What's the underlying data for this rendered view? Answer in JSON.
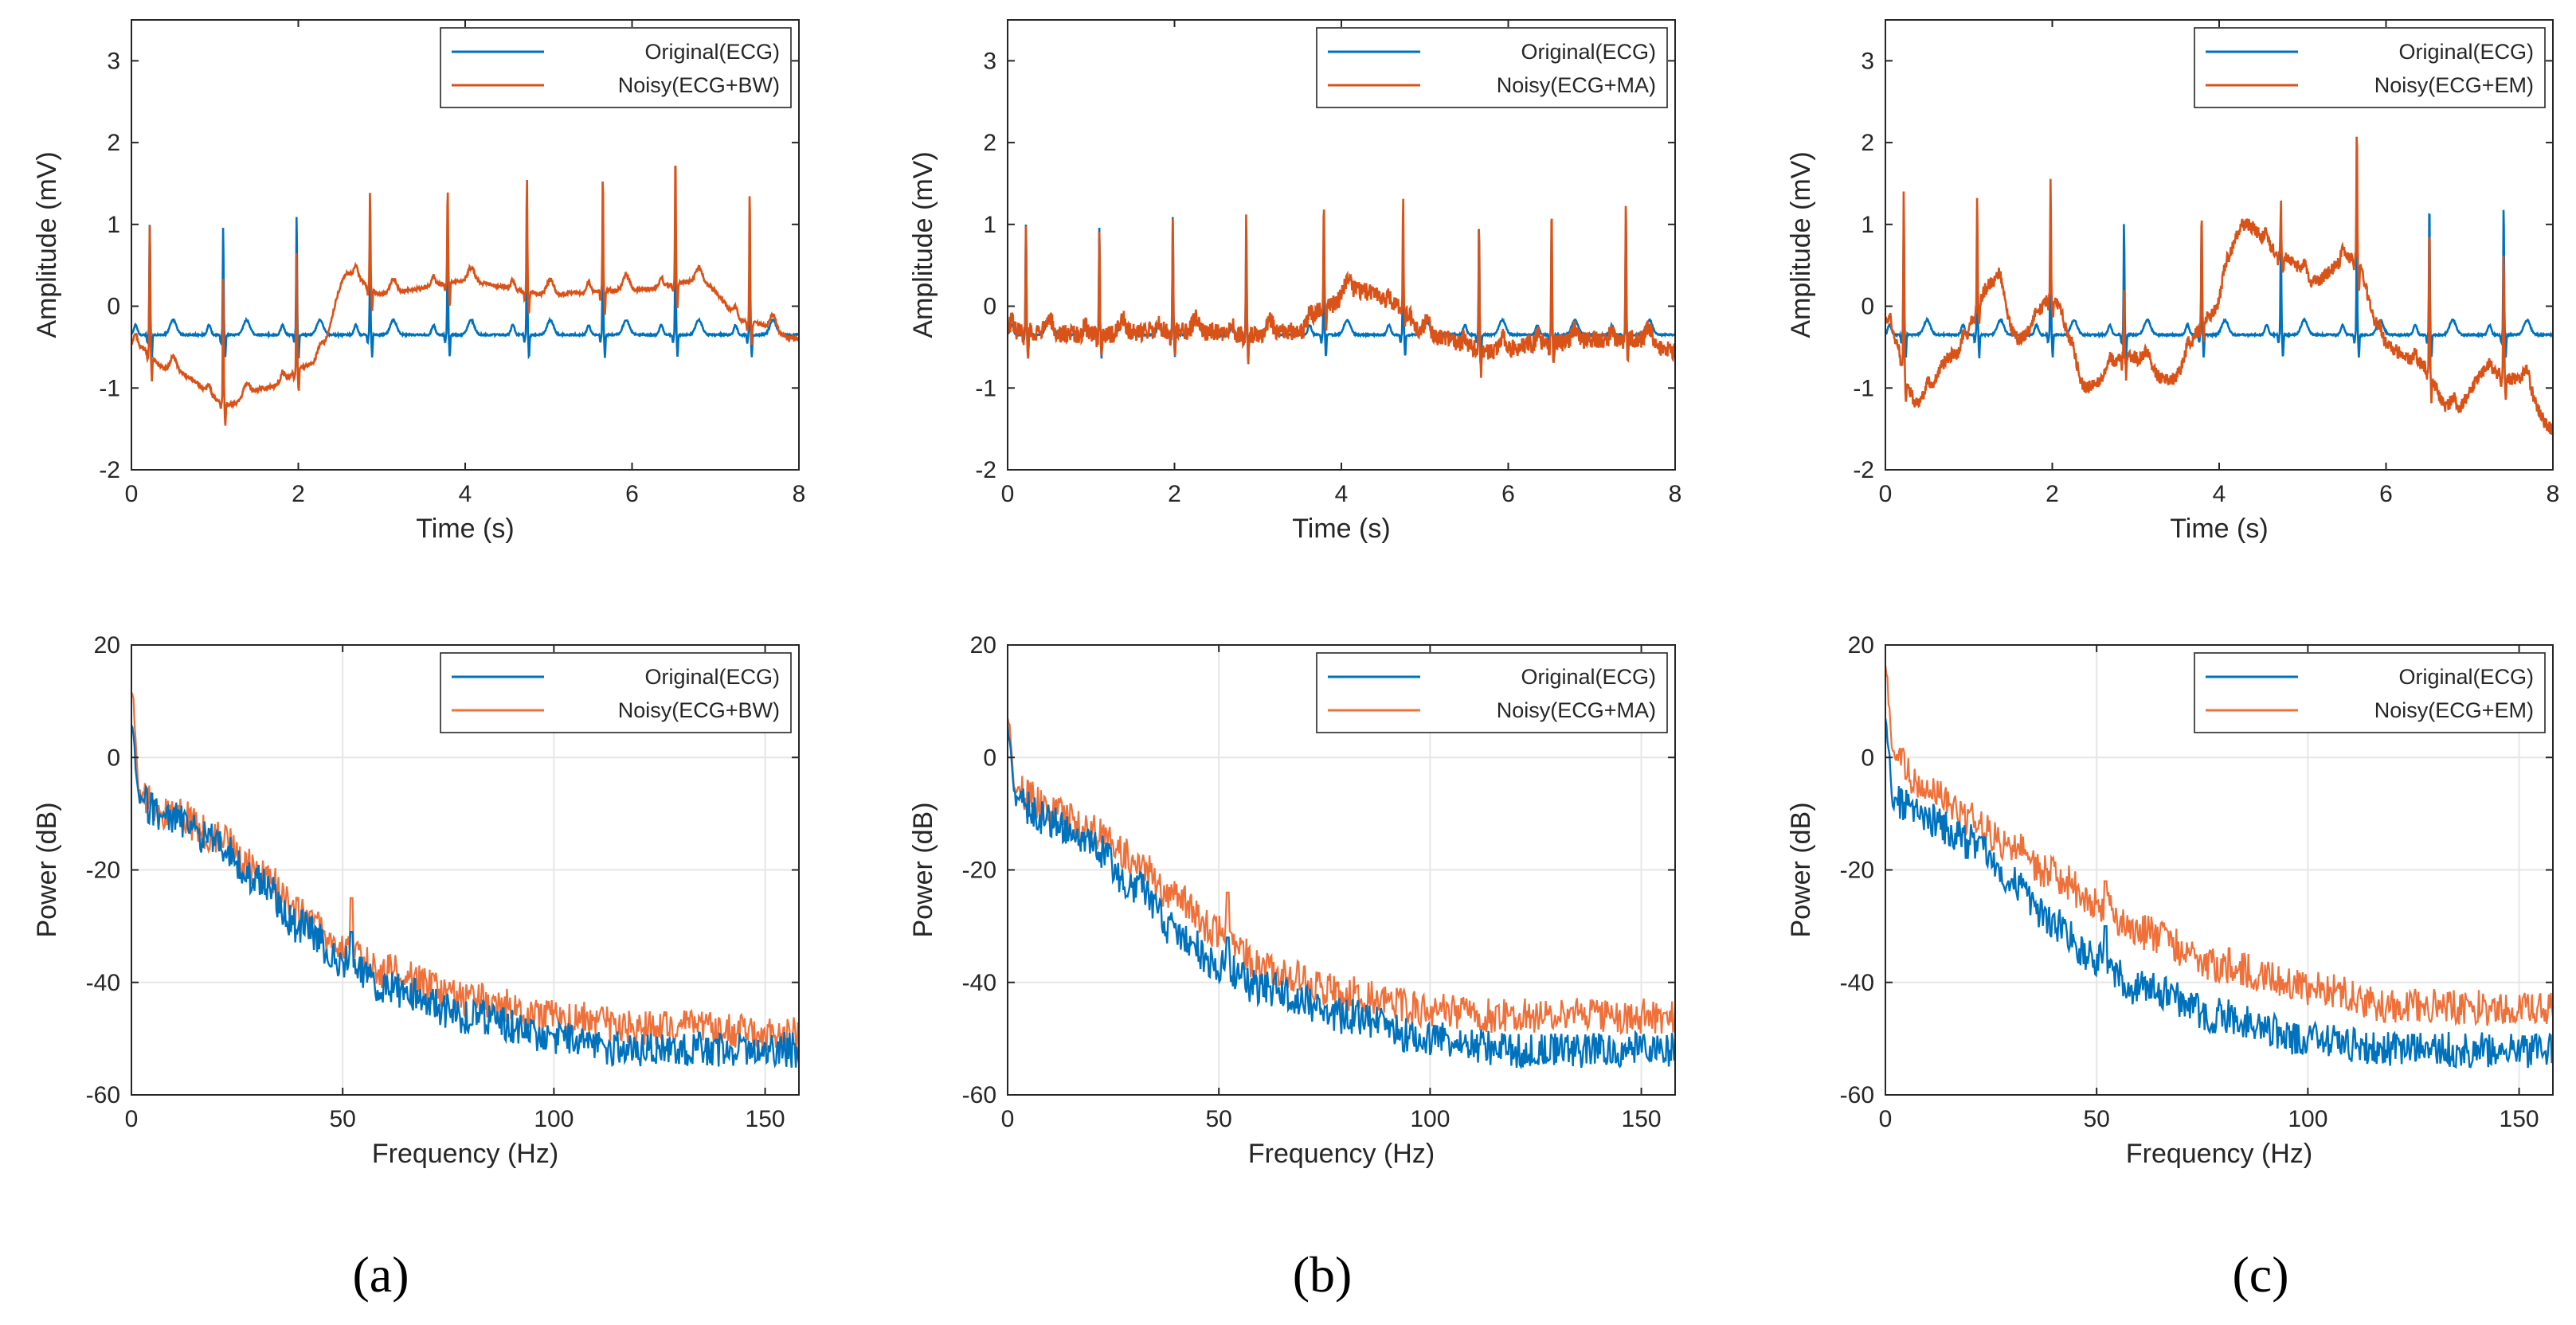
{
  "figure": {
    "panel_labels": [
      "(a)",
      "(b)",
      "(c)"
    ]
  },
  "colors": {
    "original": "#0072BD",
    "noisy": "#D95319",
    "noisy_psd": "#F0703A",
    "grid": "#E6E6E6",
    "axis": "#262626"
  },
  "chart_data": [
    {
      "id": "a-time",
      "type": "line",
      "panel": "(a)",
      "kind": "time",
      "xlabel": "Time (s)",
      "ylabel": "Amplitude (mV)",
      "xlim": [
        0,
        8
      ],
      "ylim": [
        -2,
        3.5
      ],
      "xticks": [
        0,
        2,
        4,
        6,
        8
      ],
      "yticks": [
        -2,
        -1,
        0,
        1,
        2,
        3
      ],
      "grid": false,
      "legend_position": "top-right",
      "noise": "BW",
      "beats": [
        0.22,
        1.1,
        1.98,
        2.86,
        3.79,
        4.74,
        5.65,
        6.52,
        7.41
      ],
      "beat_peaks_original": [
        1.05,
        1.0,
        1.15,
        0.55,
        1.0,
        0.95,
        1.05,
        1.0,
        0.8
      ],
      "beat_peaks_noisy": [
        1.05,
        0.4,
        0.7,
        1.45,
        1.5,
        1.6,
        1.65,
        1.95,
        1.5
      ],
      "baseline_original": -0.35,
      "noisy_baseline_knots": [
        [
          0,
          -0.45
        ],
        [
          0.5,
          -0.8
        ],
        [
          1.2,
          -1.2
        ],
        [
          1.6,
          -1.0
        ],
        [
          2.2,
          -0.7
        ],
        [
          2.6,
          0.4
        ],
        [
          3.0,
          0.15
        ],
        [
          4.0,
          0.3
        ],
        [
          5.0,
          0.15
        ],
        [
          6.0,
          0.2
        ],
        [
          6.8,
          0.3
        ],
        [
          7.4,
          -0.2
        ],
        [
          8.0,
          -0.4
        ]
      ],
      "series": [
        {
          "name": "Original(ECG)",
          "color": "#0072BD"
        },
        {
          "name": "Noisy(ECG+BW)",
          "color": "#D95319"
        }
      ]
    },
    {
      "id": "b-time",
      "type": "line",
      "panel": "(b)",
      "kind": "time",
      "xlabel": "Time (s)",
      "ylabel": "Amplitude (mV)",
      "xlim": [
        0,
        8
      ],
      "ylim": [
        -2,
        3.5
      ],
      "xticks": [
        0,
        2,
        4,
        6,
        8
      ],
      "yticks": [
        -2,
        -1,
        0,
        1,
        2,
        3
      ],
      "grid": false,
      "legend_position": "top-right",
      "noise": "MA",
      "beats": [
        0.22,
        1.1,
        1.98,
        2.86,
        3.79,
        4.74,
        5.65,
        6.52,
        7.41
      ],
      "beat_peaks_original": [
        1.05,
        1.0,
        1.15,
        0.8,
        1.0,
        0.95,
        1.05,
        1.0,
        1.1
      ],
      "beat_peaks_noisy": [
        1.05,
        1.05,
        1.2,
        1.2,
        1.35,
        1.25,
        1.0,
        1.35,
        1.3
      ],
      "baseline_original": -0.35,
      "noisy_baseline_knots": [
        [
          0,
          -0.3
        ],
        [
          1.0,
          -0.35
        ],
        [
          2.0,
          -0.3
        ],
        [
          3.0,
          -0.35
        ],
        [
          3.5,
          -0.3
        ],
        [
          3.8,
          0.0
        ],
        [
          4.2,
          0.2
        ],
        [
          4.7,
          0.0
        ],
        [
          5.0,
          -0.35
        ],
        [
          5.8,
          -0.55
        ],
        [
          6.5,
          -0.45
        ],
        [
          7.5,
          -0.4
        ],
        [
          8.0,
          -0.55
        ]
      ],
      "series": [
        {
          "name": "Original(ECG)",
          "color": "#0072BD"
        },
        {
          "name": "Noisy(ECG+MA)",
          "color": "#D95319"
        }
      ]
    },
    {
      "id": "c-time",
      "type": "line",
      "panel": "(c)",
      "kind": "time",
      "xlabel": "Time (s)",
      "ylabel": "Amplitude (mV)",
      "xlim": [
        0,
        8
      ],
      "ylim": [
        -2,
        3.5
      ],
      "xticks": [
        0,
        2,
        4,
        6,
        8
      ],
      "yticks": [
        -2,
        -1,
        0,
        1,
        2,
        3
      ],
      "grid": false,
      "legend_position": "top-right",
      "noise": "EM",
      "beats": [
        0.22,
        1.1,
        1.98,
        2.86,
        3.79,
        4.74,
        5.65,
        6.52,
        7.41
      ],
      "beat_peaks_original": [
        1.05,
        1.0,
        1.15,
        1.05,
        1.05,
        0.95,
        1.05,
        1.35,
        1.3
      ],
      "beat_peaks_noisy": [
        1.5,
        1.3,
        1.55,
        0.2,
        1.2,
        1.3,
        2.25,
        1.1,
        0.75
      ],
      "baseline_original": -0.35,
      "noisy_baseline_knots": [
        [
          0,
          -0.2
        ],
        [
          0.4,
          -1.2
        ],
        [
          0.8,
          -0.6
        ],
        [
          1.3,
          0.3
        ],
        [
          1.6,
          -0.4
        ],
        [
          2.0,
          0.1
        ],
        [
          2.4,
          -1.0
        ],
        [
          2.9,
          -0.6
        ],
        [
          3.4,
          -0.9
        ],
        [
          3.9,
          -0.1
        ],
        [
          4.3,
          1.0
        ],
        [
          4.8,
          0.6
        ],
        [
          5.1,
          0.3
        ],
        [
          5.6,
          0.6
        ],
        [
          6.0,
          -0.5
        ],
        [
          6.4,
          -0.7
        ],
        [
          6.8,
          -1.3
        ],
        [
          7.2,
          -0.8
        ],
        [
          7.6,
          -0.9
        ],
        [
          8.0,
          -1.5
        ]
      ],
      "series": [
        {
          "name": "Original(ECG)",
          "color": "#0072BD"
        },
        {
          "name": "Noisy(ECG+EM)",
          "color": "#D95319"
        }
      ]
    },
    {
      "id": "a-psd",
      "type": "line",
      "panel": "(a)",
      "kind": "psd",
      "xlabel": "Frequency (Hz)",
      "ylabel": "Power (dB)",
      "xlim": [
        0,
        158
      ],
      "ylim": [
        -60,
        20
      ],
      "xticks": [
        0,
        50,
        100,
        150
      ],
      "yticks": [
        -60,
        -40,
        -20,
        0,
        20
      ],
      "grid": true,
      "legend_position": "top-right",
      "original_knots": [
        [
          0,
          5
        ],
        [
          2,
          -8
        ],
        [
          10,
          -11
        ],
        [
          20,
          -15
        ],
        [
          30,
          -22
        ],
        [
          40,
          -30
        ],
        [
          50,
          -36
        ],
        [
          60,
          -41
        ],
        [
          80,
          -46
        ],
        [
          100,
          -50
        ],
        [
          120,
          -52
        ],
        [
          158,
          -52
        ]
      ],
      "noisy_knots": [
        [
          0,
          12
        ],
        [
          2,
          -7
        ],
        [
          10,
          -10
        ],
        [
          20,
          -14
        ],
        [
          30,
          -20
        ],
        [
          40,
          -28
        ],
        [
          50,
          -34
        ],
        [
          60,
          -38
        ],
        [
          80,
          -43
        ],
        [
          100,
          -46
        ],
        [
          120,
          -48
        ],
        [
          158,
          -49
        ]
      ],
      "spike": {
        "freq": 52,
        "original": -31,
        "noisy": -25
      },
      "series": [
        {
          "name": "Original(ECG)",
          "color": "#0072BD"
        },
        {
          "name": "Noisy(ECG+BW)",
          "color": "#F0703A"
        }
      ]
    },
    {
      "id": "b-psd",
      "type": "line",
      "panel": "(b)",
      "kind": "psd",
      "xlabel": "Frequency (Hz)",
      "ylabel": "Power (dB)",
      "xlim": [
        0,
        158
      ],
      "ylim": [
        -60,
        20
      ],
      "xticks": [
        0,
        50,
        100,
        150
      ],
      "yticks": [
        -60,
        -40,
        -20,
        0,
        20
      ],
      "grid": true,
      "legend_position": "top-right",
      "original_knots": [
        [
          0,
          5
        ],
        [
          2,
          -8
        ],
        [
          10,
          -11
        ],
        [
          20,
          -16
        ],
        [
          30,
          -23
        ],
        [
          40,
          -31
        ],
        [
          50,
          -37
        ],
        [
          60,
          -41
        ],
        [
          80,
          -46
        ],
        [
          100,
          -50
        ],
        [
          120,
          -52
        ],
        [
          158,
          -52
        ]
      ],
      "noisy_knots": [
        [
          0,
          8
        ],
        [
          2,
          -6
        ],
        [
          10,
          -9
        ],
        [
          20,
          -13
        ],
        [
          30,
          -18
        ],
        [
          40,
          -25
        ],
        [
          50,
          -31
        ],
        [
          60,
          -37
        ],
        [
          80,
          -42
        ],
        [
          100,
          -45
        ],
        [
          120,
          -46
        ],
        [
          158,
          -46
        ]
      ],
      "spike": {
        "freq": 52,
        "original": -32,
        "noisy": -24
      },
      "series": [
        {
          "name": "Original(ECG)",
          "color": "#0072BD"
        },
        {
          "name": "Noisy(ECG+MA)",
          "color": "#F0703A"
        }
      ]
    },
    {
      "id": "c-psd",
      "type": "line",
      "panel": "(c)",
      "kind": "psd",
      "xlabel": "Frequency (Hz)",
      "ylabel": "Power (dB)",
      "xlim": [
        0,
        158
      ],
      "ylim": [
        -60,
        20
      ],
      "xticks": [
        0,
        50,
        100,
        150
      ],
      "yticks": [
        -60,
        -40,
        -20,
        0,
        20
      ],
      "grid": true,
      "legend_position": "top-right",
      "original_knots": [
        [
          0,
          6
        ],
        [
          2,
          -8
        ],
        [
          10,
          -11
        ],
        [
          20,
          -15
        ],
        [
          30,
          -22
        ],
        [
          40,
          -30
        ],
        [
          50,
          -36
        ],
        [
          60,
          -41
        ],
        [
          80,
          -46
        ],
        [
          100,
          -50
        ],
        [
          120,
          -52
        ],
        [
          158,
          -52
        ]
      ],
      "noisy_knots": [
        [
          0,
          15
        ],
        [
          2,
          0
        ],
        [
          10,
          -6
        ],
        [
          20,
          -11
        ],
        [
          30,
          -16
        ],
        [
          40,
          -21
        ],
        [
          50,
          -26
        ],
        [
          60,
          -31
        ],
        [
          80,
          -37
        ],
        [
          100,
          -41
        ],
        [
          120,
          -44
        ],
        [
          158,
          -45
        ]
      ],
      "spike": {
        "freq": 52,
        "original": -30,
        "noisy": -22
      },
      "series": [
        {
          "name": "Original(ECG)",
          "color": "#0072BD"
        },
        {
          "name": "Noisy(ECG+EM)",
          "color": "#F0703A"
        }
      ]
    }
  ]
}
